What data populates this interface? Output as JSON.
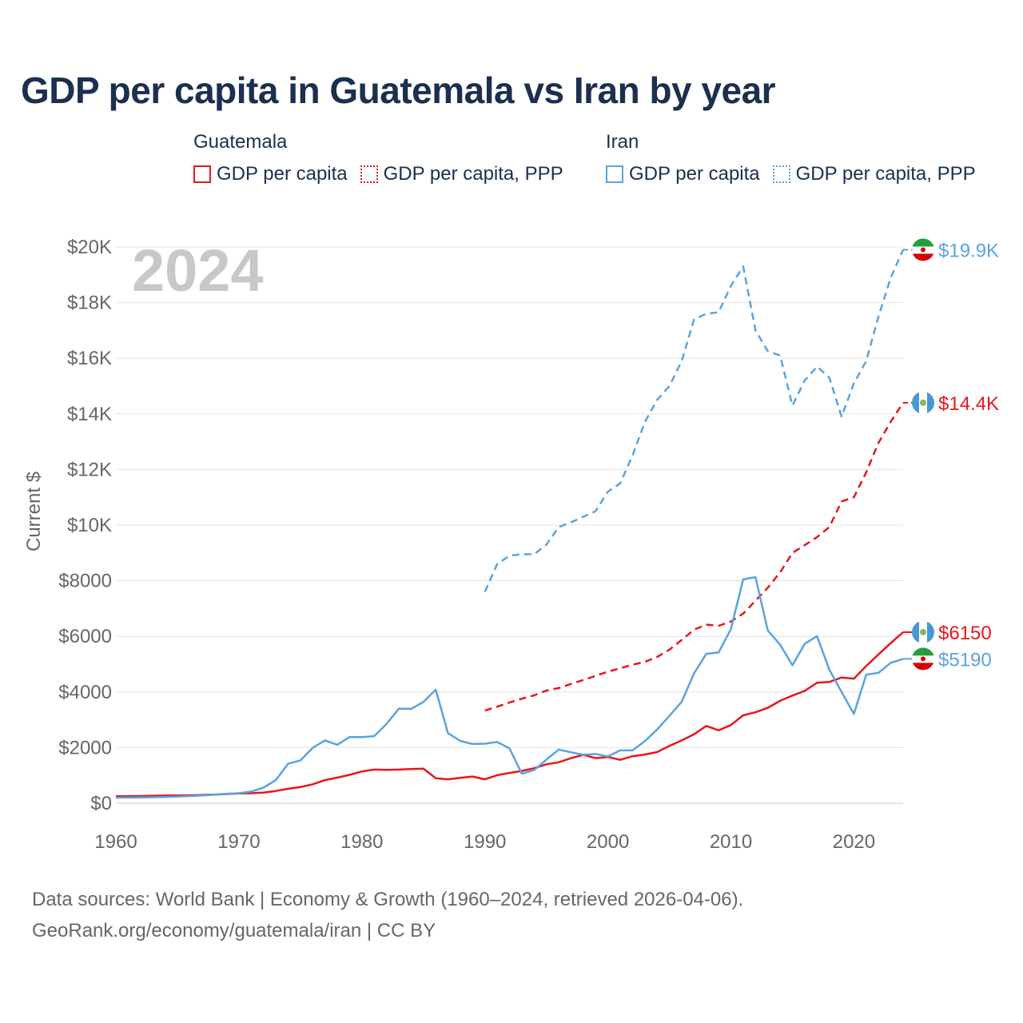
{
  "title": "GDP per capita in Guatemala vs Iran by year",
  "year_overlay": "2024",
  "legend": {
    "groups": [
      {
        "name": "Guatemala",
        "items": [
          "GDP per capita",
          "GDP per capita, PPP"
        ]
      },
      {
        "name": "Iran",
        "items": [
          "GDP per capita",
          "GDP per capita, PPP"
        ]
      }
    ]
  },
  "colors": {
    "guatemala": "#e8161b",
    "iran": "#5aa3e0",
    "grid": "#e6e6e6",
    "axis_text": "#666666"
  },
  "end_labels": {
    "iran_ppp": "$19.9K",
    "guatemala_ppp": "$14.4K",
    "guatemala_gdp": "$6150",
    "iran_gdp": "$5190"
  },
  "footer": {
    "line1": "Data sources: World Bank | Economy & Growth (1960–2024, retrieved 2026-04-06).",
    "line2": "GeoRank.org/economy/guatemala/iran | CC BY"
  },
  "chart_data": {
    "type": "line",
    "title": "GDP per capita in Guatemala vs Iran by year",
    "xlabel": "",
    "ylabel": "Current $",
    "xlim": [
      1960,
      2024
    ],
    "ylim": [
      0,
      20000
    ],
    "x_ticks": [
      1960,
      1970,
      1980,
      1990,
      2000,
      2010,
      2020
    ],
    "x_tick_labels": [
      "1960",
      "1970",
      "1980",
      "1990",
      "2000",
      "2010",
      "2020"
    ],
    "y_ticks": [
      0,
      2000,
      4000,
      6000,
      8000,
      10000,
      12000,
      14000,
      16000,
      18000,
      20000
    ],
    "y_tick_labels": [
      "$0",
      "$2000",
      "$4000",
      "$6000",
      "$8000",
      "$10K",
      "$12K",
      "$14K",
      "$16K",
      "$18K",
      "$20K"
    ],
    "grid": true,
    "series": [
      {
        "name": "Guatemala GDP per capita",
        "country": "Guatemala",
        "style": "solid",
        "x": [
          1960,
          1961,
          1962,
          1963,
          1964,
          1965,
          1966,
          1967,
          1968,
          1969,
          1970,
          1971,
          1972,
          1973,
          1974,
          1975,
          1976,
          1977,
          1978,
          1979,
          1980,
          1981,
          1982,
          1983,
          1984,
          1985,
          1986,
          1987,
          1988,
          1989,
          1990,
          1991,
          1992,
          1993,
          1994,
          1995,
          1996,
          1997,
          1998,
          1999,
          2000,
          2001,
          2002,
          2003,
          2004,
          2005,
          2006,
          2007,
          2008,
          2009,
          2010,
          2011,
          2012,
          2013,
          2014,
          2015,
          2016,
          2017,
          2018,
          2019,
          2020,
          2021,
          2022,
          2023,
          2024
        ],
        "values": [
          250,
          255,
          260,
          270,
          275,
          280,
          285,
          295,
          310,
          330,
          350,
          360,
          380,
          440,
          520,
          580,
          680,
          830,
          920,
          1020,
          1140,
          1210,
          1200,
          1210,
          1230,
          1240,
          900,
          860,
          910,
          960,
          860,
          1010,
          1090,
          1160,
          1260,
          1400,
          1470,
          1620,
          1740,
          1620,
          1660,
          1560,
          1690,
          1750,
          1840,
          2060,
          2260,
          2480,
          2780,
          2620,
          2810,
          3160,
          3270,
          3430,
          3680,
          3870,
          4040,
          4330,
          4360,
          4520,
          4480,
          4930,
          5350,
          5760,
          6150
        ]
      },
      {
        "name": "Guatemala GDP per capita, PPP",
        "country": "Guatemala",
        "style": "dashed",
        "x": [
          1990,
          1991,
          1992,
          1993,
          1994,
          1995,
          1996,
          1997,
          1998,
          1999,
          2000,
          2001,
          2002,
          2003,
          2004,
          2005,
          2006,
          2007,
          2008,
          2009,
          2010,
          2011,
          2012,
          2013,
          2014,
          2015,
          2016,
          2017,
          2018,
          2019,
          2020,
          2021,
          2022,
          2023,
          2024
        ],
        "values": [
          3330,
          3470,
          3620,
          3760,
          3880,
          4050,
          4140,
          4290,
          4430,
          4580,
          4730,
          4850,
          4980,
          5080,
          5260,
          5520,
          5870,
          6240,
          6420,
          6380,
          6530,
          6820,
          7280,
          7750,
          8300,
          9000,
          9280,
          9570,
          9930,
          10850,
          11000,
          11900,
          12960,
          13720,
          14400
        ]
      },
      {
        "name": "Iran GDP per capita",
        "country": "Iran",
        "style": "solid",
        "x": [
          1960,
          1961,
          1962,
          1963,
          1964,
          1965,
          1966,
          1967,
          1968,
          1969,
          1970,
          1971,
          1972,
          1973,
          1974,
          1975,
          1976,
          1977,
          1978,
          1979,
          1980,
          1981,
          1982,
          1983,
          1984,
          1985,
          1986,
          1987,
          1988,
          1989,
          1990,
          1991,
          1992,
          1993,
          1994,
          1995,
          1996,
          1997,
          1998,
          1999,
          2000,
          2001,
          2002,
          2003,
          2004,
          2005,
          2006,
          2007,
          2008,
          2009,
          2010,
          2011,
          2012,
          2013,
          2014,
          2015,
          2016,
          2017,
          2018,
          2019,
          2020,
          2021,
          2022,
          2023,
          2024
        ],
        "values": [
          200,
          205,
          210,
          215,
          225,
          240,
          260,
          280,
          310,
          340,
          360,
          420,
          560,
          830,
          1420,
          1540,
          1990,
          2260,
          2100,
          2380,
          2380,
          2410,
          2850,
          3400,
          3390,
          3640,
          4080,
          2520,
          2240,
          2130,
          2140,
          2200,
          1970,
          1060,
          1190,
          1570,
          1930,
          1830,
          1740,
          1770,
          1680,
          1900,
          1900,
          2230,
          2650,
          3140,
          3650,
          4670,
          5370,
          5420,
          6260,
          8050,
          8130,
          6210,
          5700,
          4960,
          5730,
          6010,
          4800,
          4000,
          3210,
          4620,
          4690,
          5050,
          5190
        ]
      },
      {
        "name": "Iran GDP per capita, PPP",
        "country": "Iran",
        "style": "dashed",
        "x": [
          1990,
          1991,
          1992,
          1993,
          1994,
          1995,
          1996,
          1997,
          1998,
          1999,
          2000,
          2001,
          2002,
          2003,
          2004,
          2005,
          2006,
          2007,
          2008,
          2009,
          2010,
          2011,
          2012,
          2013,
          2014,
          2015,
          2016,
          2017,
          2018,
          2019,
          2020,
          2021,
          2022,
          2023,
          2024
        ],
        "values": [
          7600,
          8600,
          8900,
          8950,
          8950,
          9300,
          9930,
          10100,
          10300,
          10500,
          11200,
          11500,
          12500,
          13700,
          14500,
          15000,
          15900,
          17400,
          17600,
          17650,
          18600,
          19300,
          17000,
          16250,
          16100,
          14300,
          15200,
          15700,
          15300,
          13900,
          15100,
          15900,
          17500,
          18900,
          19900
        ]
      }
    ]
  }
}
